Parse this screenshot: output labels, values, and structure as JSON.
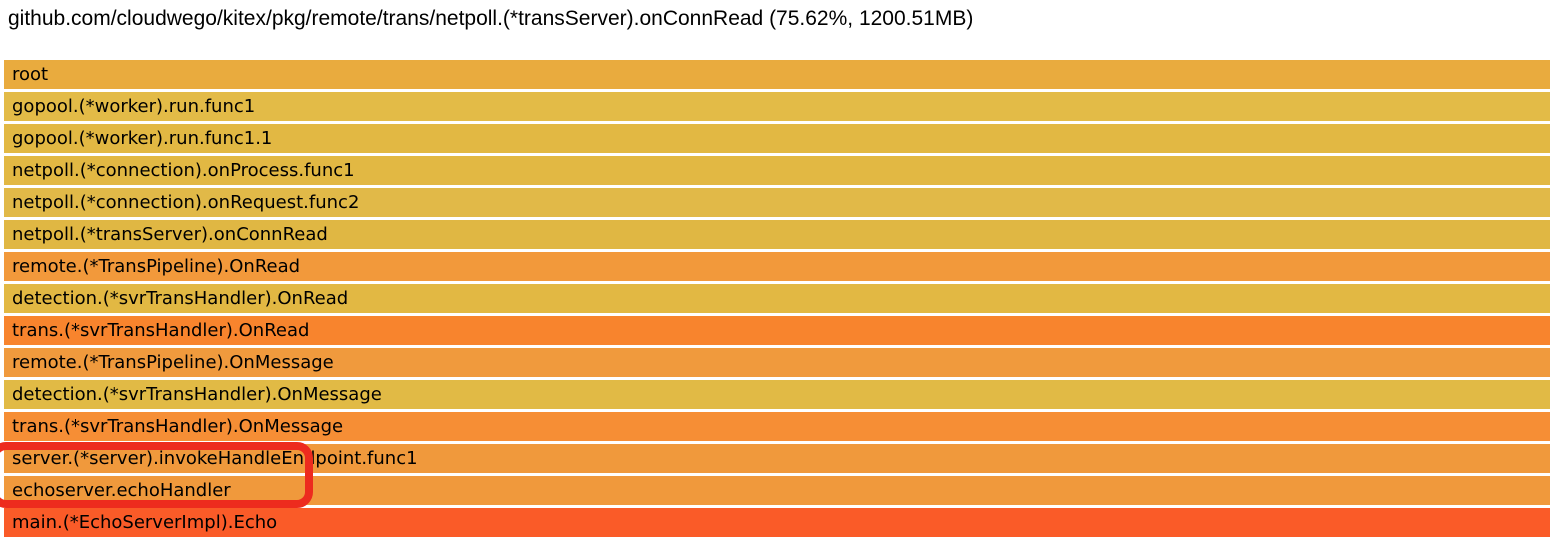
{
  "title": "github.com/cloudwego/kitex/pkg/remote/trans/netpoll.(*transServer).onConnRead (75.62%, 1200.51MB)",
  "colors": {
    "background": "#ffffff",
    "label_text": "#000000",
    "annotation_red": "#ED2B1E"
  },
  "chart_data": {
    "type": "flamegraph",
    "title": "github.com/cloudwego/kitex/pkg/remote/trans/netpoll.(*transServer).onConnRead (75.62%, 1200.51MB)",
    "focus": {
      "function": "github.com/cloudwego/kitex/pkg/remote/trans/netpoll.(*transServer).onConnRead",
      "percent": "75.62%",
      "size": "1200.51MB"
    },
    "frames": [
      {
        "label": "root",
        "color": "#E9AB3E",
        "width_pct": 100
      },
      {
        "label": "gopool.(*worker).run.func1",
        "color": "#E3BB47",
        "width_pct": 100
      },
      {
        "label": "gopool.(*worker).run.func1.1",
        "color": "#E2B843",
        "width_pct": 100
      },
      {
        "label": "netpoll.(*connection).onProcess.func1",
        "color": "#E2B843",
        "width_pct": 100
      },
      {
        "label": "netpoll.(*connection).onRequest.func2",
        "color": "#E1B948",
        "width_pct": 100
      },
      {
        "label": "netpoll.(*transServer).onConnRead",
        "color": "#E0B743",
        "width_pct": 100
      },
      {
        "label": "remote.(*TransPipeline).OnRead",
        "color": "#F2993B",
        "width_pct": 100
      },
      {
        "label": "detection.(*svrTransHandler).OnRead",
        "color": "#E2B843",
        "width_pct": 100
      },
      {
        "label": "trans.(*svrTransHandler).OnRead",
        "color": "#F8842D",
        "width_pct": 100
      },
      {
        "label": "remote.(*TransPipeline).OnMessage",
        "color": "#F09A3D",
        "width_pct": 100
      },
      {
        "label": "detection.(*svrTransHandler).OnMessage",
        "color": "#E1BA45",
        "width_pct": 100
      },
      {
        "label": "trans.(*svrTransHandler).OnMessage",
        "color": "#F68E35",
        "width_pct": 100
      },
      {
        "label": "server.(*server).invokeHandleEndpoint.func1",
        "color": "#F0993C",
        "width_pct": 100
      },
      {
        "label": "echoserver.echoHandler",
        "color": "#F0993C",
        "width_pct": 100
      },
      {
        "label": "main.(*EchoServerImpl).Echo",
        "color": "#FA5B28",
        "width_pct": 100
      }
    ],
    "annotation": {
      "shape": "red-rounded-rectangle",
      "color": "#ED2B1E",
      "highlighted_frames": [
        "server.(*server).invokeHandleEndpoint.func1",
        "echoserver.echoHandler"
      ]
    },
    "layout": {
      "orientation": "icicle-top-down",
      "rows": 15,
      "grid": false,
      "legend": false
    }
  }
}
